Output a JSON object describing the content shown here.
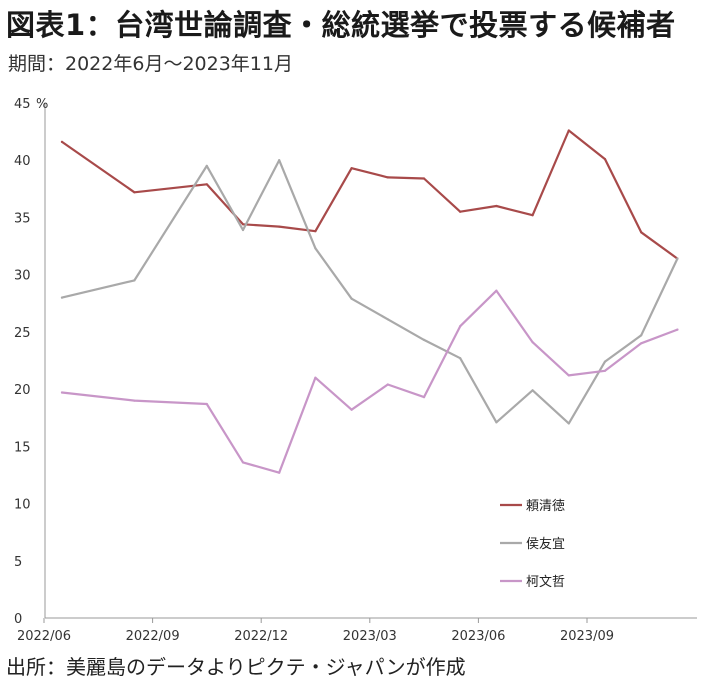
{
  "header": {
    "title": "図表1：台湾世論調査・総統選挙で投票する候補者",
    "period": "期間：2022年6月～2023年11月"
  },
  "footer": {
    "source": "出所：美麗島のデータよりピクテ・ジャパンが作成"
  },
  "chart_data": {
    "type": "line",
    "title": "",
    "ylabel": "%",
    "ylim": [
      0,
      45
    ],
    "yticks": [
      0,
      5,
      10,
      15,
      20,
      25,
      30,
      35,
      40,
      45
    ],
    "xticks": [
      "2022/06",
      "2022/09",
      "2022/12",
      "2023/03",
      "2023/06",
      "2023/09"
    ],
    "x": [
      "2022/06",
      "2022/08",
      "2022/10",
      "2022/11",
      "2022/12",
      "2023/01",
      "2023/02",
      "2023/03",
      "2023/04",
      "2023/05",
      "2023/06",
      "2023/07",
      "2023/08",
      "2023/09",
      "2023/10",
      "2023/11"
    ],
    "grid": false,
    "legend_position": "right",
    "series": [
      {
        "name": "頼清徳",
        "color": "#a84a4a",
        "values": [
          41.6,
          37.2,
          37.9,
          34.4,
          34.2,
          33.8,
          39.3,
          38.5,
          38.4,
          35.5,
          36.0,
          35.2,
          42.6,
          40.1,
          33.7,
          31.4
        ]
      },
      {
        "name": "侯友宜",
        "color": "#a9a9a9",
        "values": [
          28.0,
          29.5,
          39.5,
          33.9,
          40.0,
          32.3,
          27.9,
          26.1,
          24.3,
          22.7,
          17.1,
          19.9,
          17.0,
          22.4,
          24.7,
          31.4
        ]
      },
      {
        "name": "柯文哲",
        "color": "#c896c8",
        "values": [
          19.7,
          19.0,
          18.7,
          13.6,
          12.7,
          21.0,
          18.2,
          20.4,
          19.3,
          25.5,
          28.6,
          24.1,
          21.2,
          21.6,
          24.0,
          25.2
        ]
      }
    ]
  }
}
